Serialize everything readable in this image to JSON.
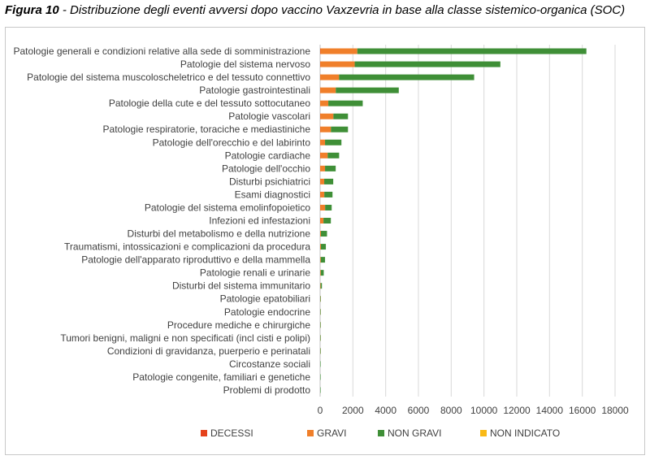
{
  "caption": {
    "figure_label": "Figura 10",
    "text": " - Distribuzione degli eventi avversi dopo vaccino Vaxzevria in base alla classe sistemico-organica (SOC)"
  },
  "chart_data": {
    "type": "bar",
    "orientation": "horizontal",
    "stacked": true,
    "title": "",
    "xlabel": "",
    "ylabel": "",
    "xlim": [
      0,
      18000
    ],
    "xticks": [
      0,
      2000,
      4000,
      6000,
      8000,
      10000,
      12000,
      14000,
      16000,
      18000
    ],
    "grid": true,
    "legend_position": "bottom",
    "categories": [
      "Patologie generali e condizioni relative alla sede di somministrazione",
      "Patologie del sistema nervoso",
      "Patologie del sistema muscoloscheletrico e del tessuto connettivo",
      "Patologie gastrointestinali",
      "Patologie della cute e del tessuto sottocutaneo",
      "Patologie vascolari",
      "Patologie respiratorie, toraciche e mediastiniche",
      "Patologie dell'orecchio e del labirinto",
      "Patologie cardiache",
      "Patologie dell'occhio",
      "Disturbi psichiatrici",
      "Esami diagnostici",
      "Patologie del sistema emolinfopoietico",
      "Infezioni ed infestazioni",
      "Disturbi del metabolismo e della nutrizione",
      "Traumatismi, intossicazioni e complicazioni da procedura",
      "Patologie dell'apparato riproduttivo e della mammella",
      "Patologie renali e urinarie",
      "Disturbi del sistema immunitario",
      "Patologie epatobiliari",
      "Patologie endocrine",
      "Procedure mediche e chirurgiche",
      "Tumori benigni, maligni e non specificati (incl cisti e polipi)",
      "Condizioni di gravidanza, puerperio e perinatali",
      "Circostanze sociali",
      "Patologie congenite, familiari e genetiche",
      "Problemi di prodotto"
    ],
    "series": [
      {
        "name": "DECESSI",
        "color": "#e5421c",
        "values": [
          20,
          10,
          5,
          5,
          0,
          10,
          10,
          0,
          10,
          0,
          0,
          5,
          5,
          5,
          0,
          0,
          0,
          0,
          0,
          0,
          0,
          0,
          0,
          0,
          0,
          0,
          0
        ]
      },
      {
        "name": "GRAVI",
        "color": "#f07f2a",
        "values": [
          2250,
          2100,
          1150,
          950,
          500,
          800,
          650,
          300,
          450,
          300,
          250,
          250,
          300,
          200,
          50,
          50,
          40,
          40,
          30,
          10,
          5,
          5,
          5,
          5,
          0,
          0,
          0
        ]
      },
      {
        "name": "NON GRAVI",
        "color": "#3f8f37",
        "values": [
          13980,
          8890,
          8245,
          3845,
          2100,
          890,
          1040,
          1000,
          700,
          650,
          550,
          500,
          400,
          450,
          370,
          300,
          260,
          180,
          80,
          20,
          15,
          15,
          5,
          5,
          5,
          5,
          5
        ]
      },
      {
        "name": "NON INDICATO",
        "color": "#f9b916",
        "values": [
          0,
          0,
          0,
          0,
          0,
          0,
          0,
          0,
          0,
          0,
          0,
          0,
          0,
          0,
          0,
          0,
          0,
          0,
          0,
          0,
          0,
          0,
          0,
          0,
          0,
          0,
          0
        ]
      }
    ]
  }
}
